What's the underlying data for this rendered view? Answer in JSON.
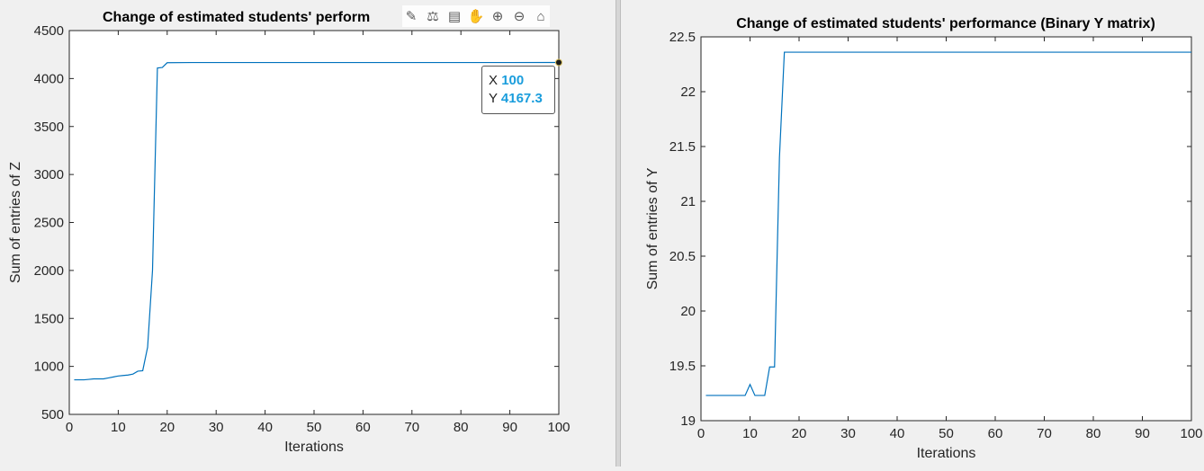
{
  "chart_data": [
    {
      "type": "line",
      "title": "Change of estimated students' perform",
      "xlabel": "Iterations",
      "ylabel": "Sum of entries of Z",
      "xlim": [
        0,
        100
      ],
      "ylim": [
        500,
        4500
      ],
      "xticks": [
        0,
        10,
        20,
        30,
        40,
        50,
        60,
        70,
        80,
        90,
        100
      ],
      "yticks": [
        500,
        1000,
        1500,
        2000,
        2500,
        3000,
        3500,
        4000,
        4500
      ],
      "grid": false,
      "line_color": "#0072bd",
      "series": [
        {
          "x": [
            1,
            2,
            3,
            4,
            5,
            6,
            7,
            8,
            9,
            10,
            11,
            12,
            13,
            14,
            15,
            16,
            17,
            18,
            19,
            20,
            25,
            30,
            40,
            50,
            60,
            70,
            80,
            90,
            100
          ],
          "y": [
            860,
            860,
            860,
            865,
            870,
            870,
            870,
            880,
            890,
            900,
            905,
            910,
            920,
            950,
            955,
            1200,
            2000,
            4110,
            4115,
            4165,
            4167,
            4167,
            4167,
            4167,
            4167,
            4167,
            4167,
            4167,
            4167.3
          ]
        }
      ],
      "datatip": {
        "x_label": "X",
        "x_value": "100",
        "y_label": "Y",
        "y_value": "4167.3"
      }
    },
    {
      "type": "line",
      "title": "Change of estimated students' performance (Binary Y matrix)",
      "xlabel": "Iterations",
      "ylabel": "Sum of entries of Y",
      "xlim": [
        0,
        100
      ],
      "ylim": [
        19,
        22.5
      ],
      "xticks": [
        0,
        10,
        20,
        30,
        40,
        50,
        60,
        70,
        80,
        90,
        100
      ],
      "yticks": [
        19,
        19.5,
        20,
        20.5,
        21,
        21.5,
        22,
        22.5
      ],
      "grid": false,
      "line_color": "#0072bd",
      "series": [
        {
          "x": [
            1,
            2,
            3,
            4,
            5,
            6,
            7,
            8,
            9,
            10,
            11,
            12,
            13,
            14,
            15,
            16,
            17,
            18,
            20,
            30,
            50,
            80,
            100
          ],
          "y": [
            19.23,
            19.23,
            19.23,
            19.23,
            19.23,
            19.23,
            19.23,
            19.23,
            19.23,
            19.33,
            19.23,
            19.23,
            19.23,
            19.49,
            19.49,
            21.4,
            22.36,
            22.36,
            22.36,
            22.36,
            22.36,
            22.36,
            22.36
          ]
        }
      ]
    }
  ],
  "toolbar": {
    "icons": [
      "brush-icon",
      "datatip-icon",
      "legend-icon",
      "pan-icon",
      "zoom-in-icon",
      "zoom-out-icon",
      "home-icon"
    ]
  }
}
